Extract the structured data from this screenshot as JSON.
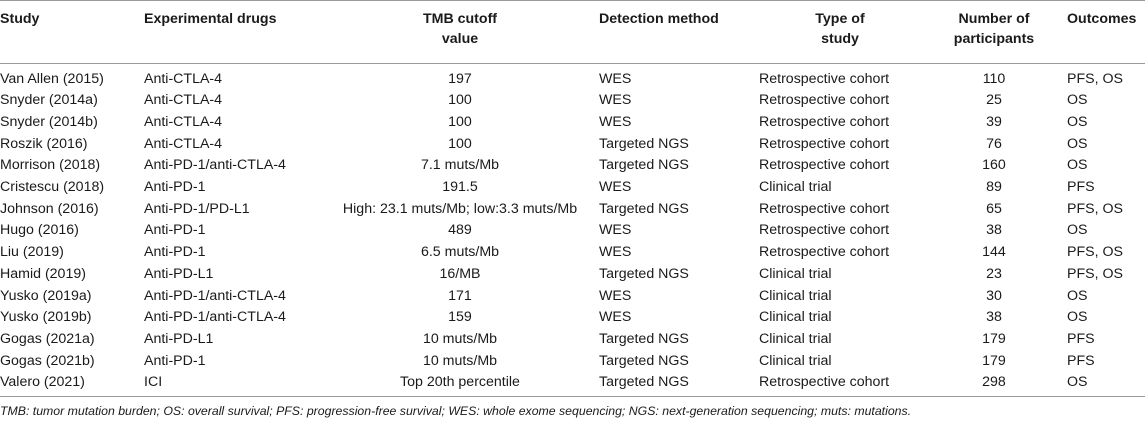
{
  "table": {
    "headers": {
      "study": "Study",
      "drugs": "Experimental drugs",
      "tmb_line1": "TMB cutoff",
      "tmb_line2": "value",
      "detection": "Detection method",
      "type_line1": "Type of",
      "type_line2": "study",
      "number_line1": "Number of",
      "number_line2": "participants",
      "outcomes": "Outcomes"
    },
    "rows": [
      {
        "study": "Van Allen (2015)",
        "drugs": "Anti-CTLA-4",
        "tmb": "197",
        "detection": "WES",
        "type": "Retrospective cohort",
        "number": "110",
        "outcomes": "PFS, OS"
      },
      {
        "study": "Snyder (2014a)",
        "drugs": "Anti-CTLA-4",
        "tmb": "100",
        "detection": "WES",
        "type": "Retrospective cohort",
        "number": "25",
        "outcomes": "OS"
      },
      {
        "study": "Snyder (2014b)",
        "drugs": "Anti-CTLA-4",
        "tmb": "100",
        "detection": "WES",
        "type": "Retrospective cohort",
        "number": "39",
        "outcomes": "OS"
      },
      {
        "study": "Roszik (2016)",
        "drugs": "Anti-CTLA-4",
        "tmb": "100",
        "detection": "Targeted NGS",
        "type": "Retrospective cohort",
        "number": "76",
        "outcomes": "OS"
      },
      {
        "study": "Morrison (2018)",
        "drugs": "Anti-PD-1/anti-CTLA-4",
        "tmb": "7.1 muts/Mb",
        "detection": "Targeted NGS",
        "type": "Retrospective cohort",
        "number": "160",
        "outcomes": "OS"
      },
      {
        "study": "Cristescu (2018)",
        "drugs": "Anti-PD-1",
        "tmb": "191.5",
        "detection": "WES",
        "type": "Clinical trial",
        "number": "89",
        "outcomes": "PFS"
      },
      {
        "study": "Johnson (2016)",
        "drugs": "Anti-PD-1/PD-L1",
        "tmb": "High: 23.1 muts/Mb; low:3.3 muts/Mb",
        "detection": "Targeted NGS",
        "type": "Retrospective cohort",
        "number": "65",
        "outcomes": "PFS, OS"
      },
      {
        "study": "Hugo (2016)",
        "drugs": "Anti-PD-1",
        "tmb": "489",
        "detection": "WES",
        "type": "Retrospective cohort",
        "number": "38",
        "outcomes": "OS"
      },
      {
        "study": "Liu (2019)",
        "drugs": "Anti-PD-1",
        "tmb": "6.5 muts/Mb",
        "detection": "WES",
        "type": "Retrospective cohort",
        "number": "144",
        "outcomes": "PFS, OS"
      },
      {
        "study": "Hamid (2019)",
        "drugs": "Anti-PD-L1",
        "tmb": "16/MB",
        "detection": "Targeted NGS",
        "type": "Clinical trial",
        "number": "23",
        "outcomes": "PFS, OS"
      },
      {
        "study": "Yusko (2019a)",
        "drugs": "Anti-PD-1/anti-CTLA-4",
        "tmb": "171",
        "detection": "WES",
        "type": "Clinical trial",
        "number": "30",
        "outcomes": "OS"
      },
      {
        "study": "Yusko (2019b)",
        "drugs": "Anti-PD-1/anti-CTLA-4",
        "tmb": "159",
        "detection": "WES",
        "type": "Clinical trial",
        "number": "38",
        "outcomes": "OS"
      },
      {
        "study": "Gogas (2021a)",
        "drugs": "Anti-PD-L1",
        "tmb": "10 muts/Mb",
        "detection": "Targeted NGS",
        "type": "Clinical trial",
        "number": "179",
        "outcomes": "PFS"
      },
      {
        "study": "Gogas (2021b)",
        "drugs": "Anti-PD-1",
        "tmb": "10 muts/Mb",
        "detection": "Targeted NGS",
        "type": "Clinical trial",
        "number": "179",
        "outcomes": "PFS"
      },
      {
        "study": "Valero (2021)",
        "drugs": "ICI",
        "tmb": "Top 20th percentile",
        "detection": "Targeted NGS",
        "type": "Retrospective cohort",
        "number": "298",
        "outcomes": "OS"
      }
    ]
  },
  "footnote": "TMB: tumor mutation burden; OS: overall survival; PFS: progression-free survival; WES: whole exome sequencing; NGS: next-generation sequencing; muts: mutations."
}
